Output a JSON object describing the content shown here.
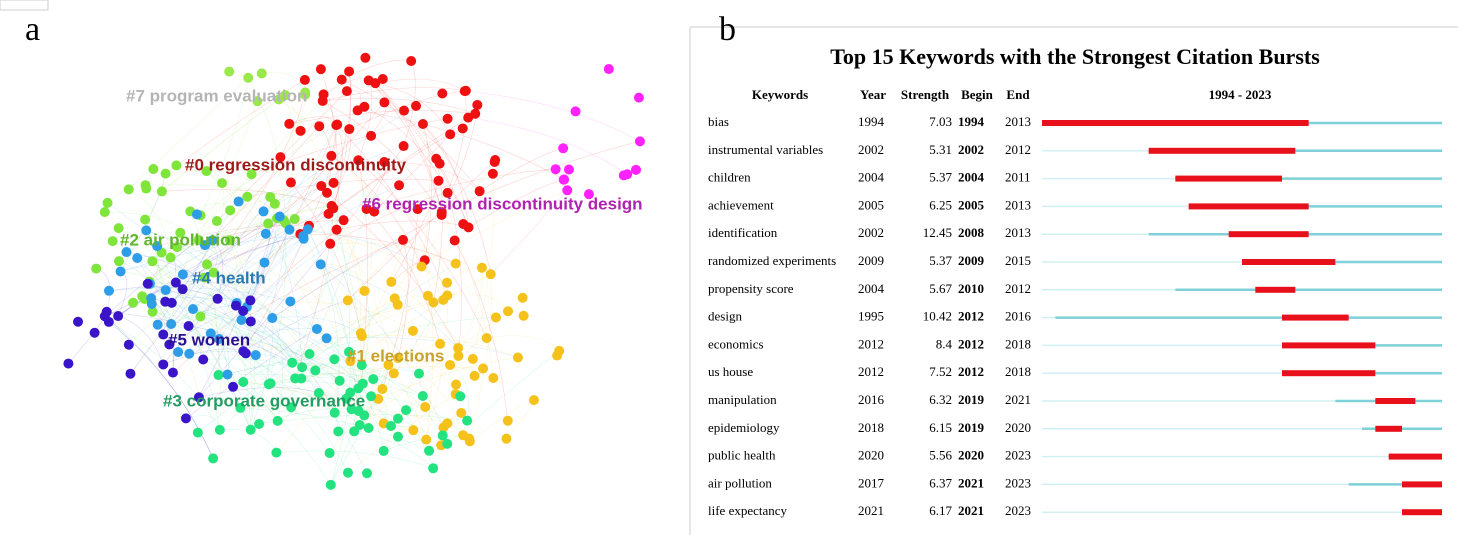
{
  "panel_a": {
    "label": "a",
    "clusters": [
      {
        "label": "#0 regression discontinuity",
        "color": "#ee1111",
        "label_color": "#9e1a1a"
      },
      {
        "label": "#1 elections",
        "color": "#f5c21b",
        "label_color": "#c8a22a"
      },
      {
        "label": "#2 air pollution",
        "color": "#7fe53a",
        "label_color": "#5fb52d"
      },
      {
        "label": "#3 corporate governance",
        "color": "#22e37f",
        "label_color": "#239c63"
      },
      {
        "label": "#4 health",
        "color": "#2e9de8",
        "label_color": "#2a7ab3"
      },
      {
        "label": "#5 women",
        "color": "#3a14c9",
        "label_color": "#2a108f"
      },
      {
        "label": "#6 regression discontinuity design",
        "color": "#ff22ff",
        "label_color": "#b023b0"
      },
      {
        "label": "#7 program evaluation",
        "color": "#9be84a",
        "label_color": "#b5b5b5"
      }
    ]
  },
  "panel_b": {
    "label": "b",
    "title": "Top 15 Keywords with the Strongest Citation Bursts",
    "columns": [
      "Keywords",
      "Year",
      "Strength",
      "Begin",
      "End"
    ],
    "timeline_header": "1994 - 2023",
    "timeline": [
      1994,
      2023
    ],
    "base_color": "#7fd0d8",
    "burst_color": "#e8101a",
    "rows": [
      [
        "bias",
        1994,
        7.03,
        1994,
        2013
      ],
      [
        "instrumental variables",
        2002,
        5.31,
        2002,
        2012
      ],
      [
        "children",
        2004,
        5.37,
        2004,
        2011
      ],
      [
        "achievement",
        2005,
        6.25,
        2005,
        2013
      ],
      [
        "identification",
        2002,
        12.45,
        2008,
        2013
      ],
      [
        "randomized experiments",
        2009,
        5.37,
        2009,
        2015
      ],
      [
        "propensity score",
        2004,
        5.67,
        2010,
        2012
      ],
      [
        "design",
        1995,
        10.42,
        2012,
        2016
      ],
      [
        "economics",
        2012,
        8.4,
        2012,
        2018
      ],
      [
        "us house",
        2012,
        7.52,
        2012,
        2018
      ],
      [
        "manipulation",
        2016,
        6.32,
        2019,
        2021
      ],
      [
        "epidemiology",
        2018,
        6.15,
        2019,
        2020
      ],
      [
        "public health",
        2020,
        5.56,
        2020,
        2023
      ],
      [
        "air pollution",
        2017,
        6.37,
        2021,
        2023
      ],
      [
        "life expectancy",
        2021,
        6.17,
        2021,
        2023
      ]
    ]
  }
}
